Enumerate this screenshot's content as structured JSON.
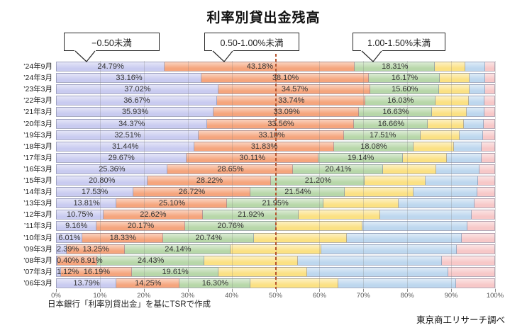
{
  "title": "利率別貸出金残高",
  "callouts": [
    {
      "label": "−0.50未満"
    },
    {
      "label": "0.50-1.00%未満"
    },
    {
      "label": "1.00-1.50%未満"
    }
  ],
  "footnotes": {
    "source": "日本銀行「利率別貸出金」を基にTSRで作成",
    "credit": "東京商工リサーチ調べ"
  },
  "x_axis": {
    "ticks": [
      "0%",
      "10%",
      "20%",
      "30%",
      "40%",
      "50%",
      "60%",
      "70%",
      "80%",
      "90%",
      "100%"
    ]
  },
  "chart_data": {
    "type": "bar",
    "stacked": true,
    "orientation": "horizontal",
    "title": "利率別貸出金残高",
    "xlim": [
      0,
      100
    ],
    "x_ticks": [
      "0%",
      "10%",
      "20%",
      "30%",
      "40%",
      "50%",
      "60%",
      "70%",
      "80%",
      "90%",
      "100%"
    ],
    "legend": "none",
    "reference_line": {
      "x": 50,
      "style": "dashed",
      "color": "#b5542e"
    },
    "categories": [
      "’24年9月",
      "’24年3月",
      "’23年3月",
      "’22年3月",
      "’21年3月",
      "’20年3月",
      "’19年3月",
      "’18年3月",
      "’17年3月",
      "’16年3月",
      "’15年3月",
      "’14年3月",
      "’13年3月",
      "’12年3月",
      "’11年3月",
      "’10年3月",
      "’09年3月",
      "’08年3月",
      "’07年3月",
      "’06年3月"
    ],
    "series": [
      {
        "name": "−0.50未満",
        "color": "#c9cbf0",
        "labels_shown": true,
        "values": [
          24.79,
          33.16,
          37.02,
          36.67,
          35.93,
          34.37,
          32.51,
          31.44,
          29.67,
          25.36,
          20.8,
          17.53,
          13.81,
          10.75,
          9.16,
          6.01,
          2.39,
          0.4,
          1.12,
          13.79
        ]
      },
      {
        "name": "0.50-1.00%未満",
        "color": "#f5a57d",
        "labels_shown": true,
        "values": [
          43.18,
          38.1,
          34.57,
          33.74,
          33.09,
          33.56,
          33.1,
          31.83,
          30.11,
          28.65,
          28.22,
          26.72,
          25.1,
          22.62,
          20.17,
          18.33,
          13.25,
          8.91,
          16.19,
          14.25
        ]
      },
      {
        "name": "1.00-1.50%未満",
        "color": "#b7d7a9",
        "labels_shown": true,
        "values": [
          18.31,
          16.17,
          15.6,
          16.03,
          16.63,
          16.66,
          17.51,
          18.08,
          19.14,
          20.41,
          21.2,
          21.54,
          21.95,
          21.92,
          20.76,
          20.74,
          24.14,
          24.43,
          19.61,
          16.3
        ]
      },
      {
        "name": "",
        "color": "#fbe183",
        "labels_shown": false,
        "estimated": true,
        "values": [
          7.0,
          6.8,
          7.0,
          7.6,
          7.9,
          8.3,
          8.8,
          9.3,
          10.1,
          12.2,
          14.0,
          15.7,
          17.1,
          18.6,
          19.7,
          21.1,
          20.7,
          21.3,
          20.3,
          20.0
        ]
      },
      {
        "name": "",
        "color": "#bdd7ee",
        "labels_shown": false,
        "estimated": true,
        "values": [
          4.4,
          3.5,
          3.5,
          3.6,
          4.0,
          4.6,
          5.3,
          6.3,
          7.9,
          9.8,
          11.9,
          14.5,
          17.3,
          20.8,
          23.9,
          26.2,
          30.8,
          32.8,
          32.2,
          26.7
        ]
      },
      {
        "name": "",
        "color": "#f7c8c8",
        "labels_shown": false,
        "estimated": true,
        "values": [
          2.32,
          2.27,
          2.31,
          2.36,
          2.45,
          2.51,
          2.78,
          3.05,
          3.08,
          3.58,
          3.88,
          4.01,
          4.74,
          5.31,
          6.31,
          7.62,
          8.72,
          12.16,
          10.58,
          8.96
        ]
      }
    ]
  }
}
